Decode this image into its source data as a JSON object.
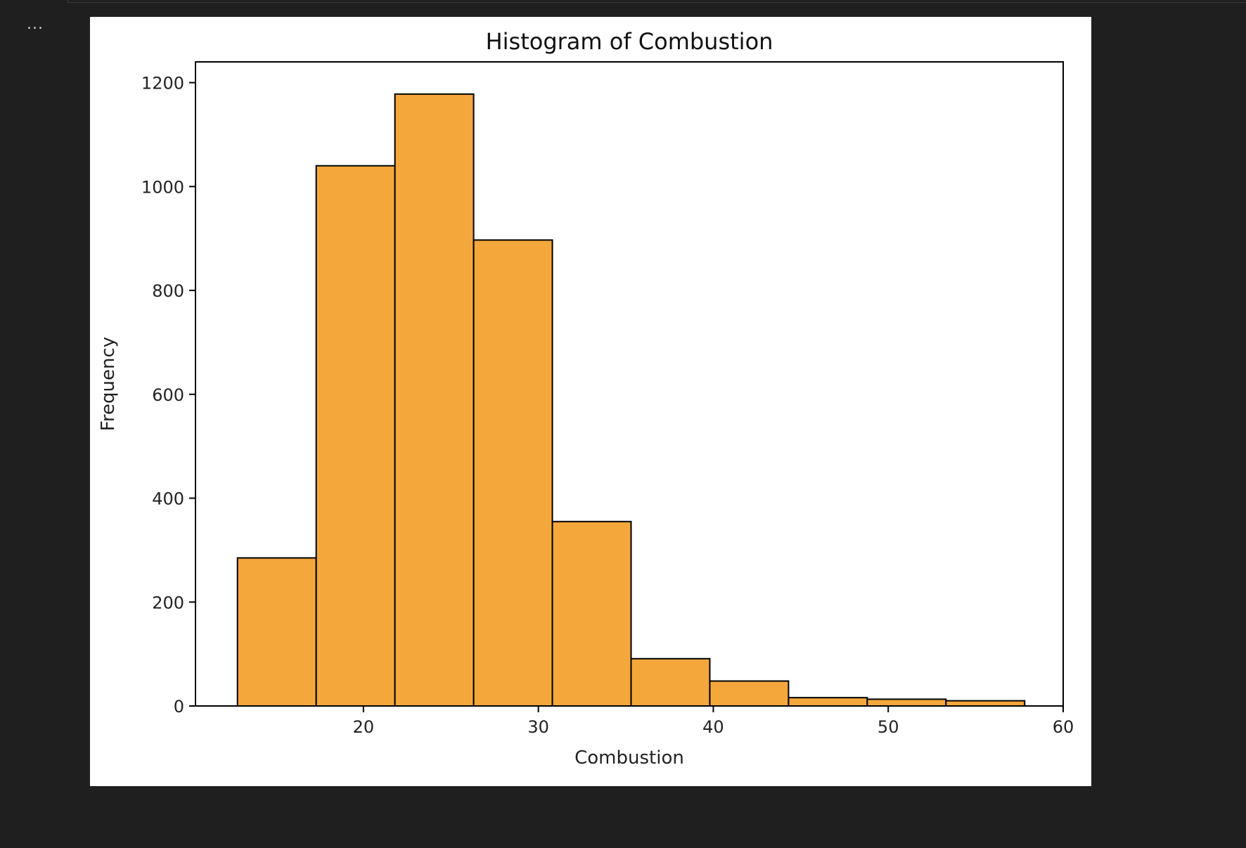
{
  "cell": {
    "menu_label": "..."
  },
  "chart_data": {
    "type": "bar",
    "title": "Histogram of Combustion",
    "xlabel": "Combustion",
    "ylabel": "Frequency",
    "xlim": [
      10.4,
      60
    ],
    "ylim": [
      0,
      1240
    ],
    "xticks": [
      20,
      30,
      40,
      50,
      60
    ],
    "yticks": [
      0,
      200,
      400,
      600,
      800,
      1000,
      1200
    ],
    "bin_edges": [
      12.8,
      17.3,
      21.8,
      26.3,
      30.8,
      35.3,
      39.8,
      44.3,
      48.8,
      53.3,
      57.8
    ],
    "values": [
      285,
      1040,
      1178,
      897,
      355,
      91,
      48,
      16,
      13,
      10
    ],
    "bar_color": "#f4a83c",
    "edge_color": "#000000",
    "grid": false
  }
}
